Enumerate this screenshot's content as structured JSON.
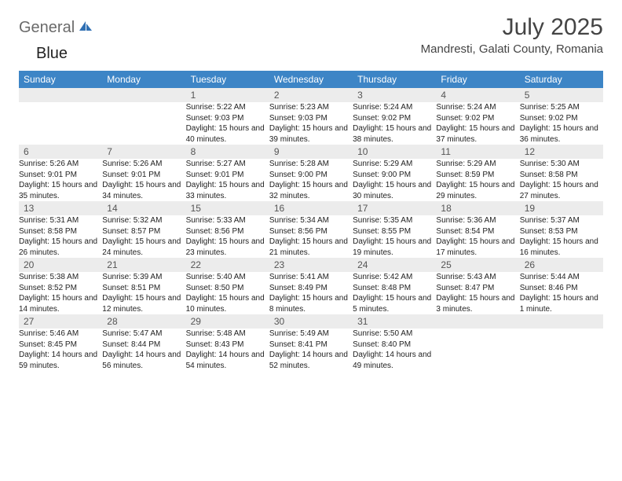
{
  "logo": {
    "part1": "General",
    "part2": "Blue"
  },
  "title": "July 2025",
  "location": "Mandresti, Galati County, Romania",
  "colors": {
    "header_bg": "#3d85c6",
    "header_text": "#ffffff",
    "rule": "#2f6fb3",
    "daynum_bg": "#ececec",
    "text": "#222222",
    "logo_gray": "#6a6a6a",
    "logo_blue": "#2f6fb3"
  },
  "day_headers": [
    "Sunday",
    "Monday",
    "Tuesday",
    "Wednesday",
    "Thursday",
    "Friday",
    "Saturday"
  ],
  "weeks": [
    [
      null,
      null,
      {
        "n": "1",
        "sr": "5:22 AM",
        "ss": "9:03 PM",
        "dl": "15 hours and 40 minutes."
      },
      {
        "n": "2",
        "sr": "5:23 AM",
        "ss": "9:03 PM",
        "dl": "15 hours and 39 minutes."
      },
      {
        "n": "3",
        "sr": "5:24 AM",
        "ss": "9:02 PM",
        "dl": "15 hours and 38 minutes."
      },
      {
        "n": "4",
        "sr": "5:24 AM",
        "ss": "9:02 PM",
        "dl": "15 hours and 37 minutes."
      },
      {
        "n": "5",
        "sr": "5:25 AM",
        "ss": "9:02 PM",
        "dl": "15 hours and 36 minutes."
      }
    ],
    [
      {
        "n": "6",
        "sr": "5:26 AM",
        "ss": "9:01 PM",
        "dl": "15 hours and 35 minutes."
      },
      {
        "n": "7",
        "sr": "5:26 AM",
        "ss": "9:01 PM",
        "dl": "15 hours and 34 minutes."
      },
      {
        "n": "8",
        "sr": "5:27 AM",
        "ss": "9:01 PM",
        "dl": "15 hours and 33 minutes."
      },
      {
        "n": "9",
        "sr": "5:28 AM",
        "ss": "9:00 PM",
        "dl": "15 hours and 32 minutes."
      },
      {
        "n": "10",
        "sr": "5:29 AM",
        "ss": "9:00 PM",
        "dl": "15 hours and 30 minutes."
      },
      {
        "n": "11",
        "sr": "5:29 AM",
        "ss": "8:59 PM",
        "dl": "15 hours and 29 minutes."
      },
      {
        "n": "12",
        "sr": "5:30 AM",
        "ss": "8:58 PM",
        "dl": "15 hours and 27 minutes."
      }
    ],
    [
      {
        "n": "13",
        "sr": "5:31 AM",
        "ss": "8:58 PM",
        "dl": "15 hours and 26 minutes."
      },
      {
        "n": "14",
        "sr": "5:32 AM",
        "ss": "8:57 PM",
        "dl": "15 hours and 24 minutes."
      },
      {
        "n": "15",
        "sr": "5:33 AM",
        "ss": "8:56 PM",
        "dl": "15 hours and 23 minutes."
      },
      {
        "n": "16",
        "sr": "5:34 AM",
        "ss": "8:56 PM",
        "dl": "15 hours and 21 minutes."
      },
      {
        "n": "17",
        "sr": "5:35 AM",
        "ss": "8:55 PM",
        "dl": "15 hours and 19 minutes."
      },
      {
        "n": "18",
        "sr": "5:36 AM",
        "ss": "8:54 PM",
        "dl": "15 hours and 17 minutes."
      },
      {
        "n": "19",
        "sr": "5:37 AM",
        "ss": "8:53 PM",
        "dl": "15 hours and 16 minutes."
      }
    ],
    [
      {
        "n": "20",
        "sr": "5:38 AM",
        "ss": "8:52 PM",
        "dl": "15 hours and 14 minutes."
      },
      {
        "n": "21",
        "sr": "5:39 AM",
        "ss": "8:51 PM",
        "dl": "15 hours and 12 minutes."
      },
      {
        "n": "22",
        "sr": "5:40 AM",
        "ss": "8:50 PM",
        "dl": "15 hours and 10 minutes."
      },
      {
        "n": "23",
        "sr": "5:41 AM",
        "ss": "8:49 PM",
        "dl": "15 hours and 8 minutes."
      },
      {
        "n": "24",
        "sr": "5:42 AM",
        "ss": "8:48 PM",
        "dl": "15 hours and 5 minutes."
      },
      {
        "n": "25",
        "sr": "5:43 AM",
        "ss": "8:47 PM",
        "dl": "15 hours and 3 minutes."
      },
      {
        "n": "26",
        "sr": "5:44 AM",
        "ss": "8:46 PM",
        "dl": "15 hours and 1 minute."
      }
    ],
    [
      {
        "n": "27",
        "sr": "5:46 AM",
        "ss": "8:45 PM",
        "dl": "14 hours and 59 minutes."
      },
      {
        "n": "28",
        "sr": "5:47 AM",
        "ss": "8:44 PM",
        "dl": "14 hours and 56 minutes."
      },
      {
        "n": "29",
        "sr": "5:48 AM",
        "ss": "8:43 PM",
        "dl": "14 hours and 54 minutes."
      },
      {
        "n": "30",
        "sr": "5:49 AM",
        "ss": "8:41 PM",
        "dl": "14 hours and 52 minutes."
      },
      {
        "n": "31",
        "sr": "5:50 AM",
        "ss": "8:40 PM",
        "dl": "14 hours and 49 minutes."
      },
      null,
      null
    ]
  ],
  "labels": {
    "sunrise": "Sunrise:",
    "sunset": "Sunset:",
    "daylight": "Daylight:"
  }
}
